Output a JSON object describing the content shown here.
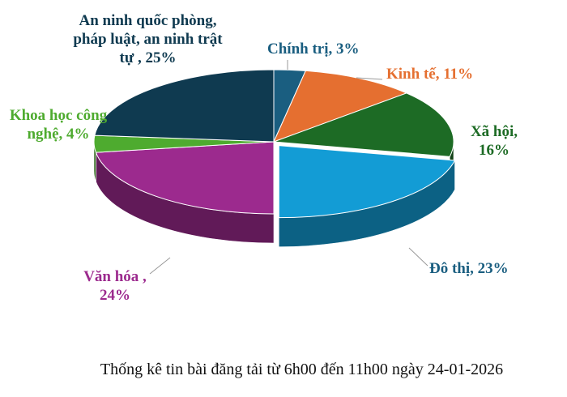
{
  "chart_data": {
    "type": "pie",
    "style": "3d-exploded-one",
    "caption": "Thống kê tin bài đăng tải từ 6h00 đến 11h00 ngày 24-01-2026",
    "categories": [
      "Chính trị",
      "Kinh tế",
      "Xã hội",
      "Đô thị",
      "Văn hóa",
      "Khoa học công nghệ",
      "An ninh quốc phòng, pháp luật, an ninh trật tự"
    ],
    "values": [
      3,
      11,
      16,
      23,
      24,
      4,
      25
    ],
    "colors": [
      "#1a5e80",
      "#e56f30",
      "#1d6b25",
      "#139cd5",
      "#9c2a8e",
      "#4eab2f",
      "#0f3a50"
    ],
    "exploded": "Đô thị",
    "labels": [
      "Chính trị, 3%",
      "Kinh tế, 11%",
      "Xã hội, 16%",
      "Đô thị, 23%",
      "Văn hóa , 24%",
      "Khoa học công nghệ, 4%",
      "An ninh quốc phòng, pháp luật, an ninh trật tự , 25%"
    ]
  }
}
